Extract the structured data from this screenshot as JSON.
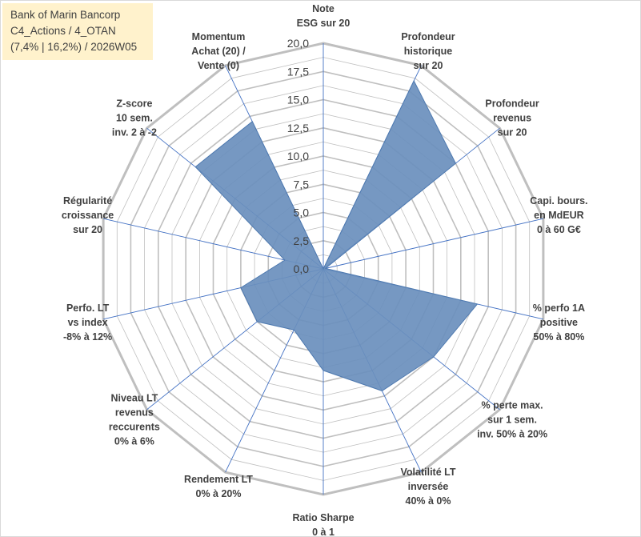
{
  "header": {
    "lines": [
      "Bank of Marin Bancorp",
      "C4_Actions / 4_OTAN",
      "(7,4% | 16,2%) / 2026W05"
    ]
  },
  "colors": {
    "fill": "#6a8fbd",
    "stroke": "#4f7ab0",
    "grid": "#bfbfbf",
    "spoke": "#4472c4",
    "title_bg": "#fff2cc"
  },
  "chart_data": {
    "type": "radar",
    "title": "Bank of Marin Bancorp",
    "rlim": [
      0,
      20
    ],
    "rticks": [
      0,
      2.5,
      5,
      7.5,
      10,
      12.5,
      15,
      17.5,
      20
    ],
    "rtick_labels": [
      "0,0",
      "2,5",
      "5,0",
      "7,5",
      "10,0",
      "12,5",
      "15,0",
      "17,5",
      "20,0"
    ],
    "axes": [
      {
        "label": [
          "Note",
          "ESG sur 20"
        ]
      },
      {
        "label": [
          "Profondeur",
          "historique",
          "sur 20"
        ]
      },
      {
        "label": [
          "Profondeur",
          "revenus",
          "sur 20"
        ]
      },
      {
        "label": [
          "Capi. bours.",
          "en MdEUR",
          "0 à 60 G€"
        ]
      },
      {
        "label": [
          "% perfo 1A",
          "positive",
          "50% à 80%"
        ]
      },
      {
        "label": [
          "% perte max.",
          "sur 1 sem.",
          "inv. 50% à 20%"
        ]
      },
      {
        "label": [
          "Volatilité LT",
          "inversée",
          "40% à 0%"
        ]
      },
      {
        "label": [
          "Ratio Sharpe",
          "0 à 1"
        ]
      },
      {
        "label": [
          "Rendement LT",
          "0% à 20%"
        ]
      },
      {
        "label": [
          "Niveau LT",
          "revenus",
          "reccurents",
          "0% à 6%"
        ]
      },
      {
        "label": [
          "Perfo. LT",
          "vs index",
          "-8% à 12%"
        ]
      },
      {
        "label": [
          "Régularité",
          "croissance",
          "sur 20"
        ]
      },
      {
        "label": [
          "Z-score",
          "10 sem.",
          "inv. 2 à -2"
        ]
      },
      {
        "label": [
          "Momentum",
          "Achat (20) /",
          "Vente (0)"
        ]
      }
    ],
    "series": [
      {
        "name": "Bank of Marin Bancorp",
        "values": [
          0,
          18.5,
          15.0,
          0.2,
          14.0,
          12.5,
          12.0,
          9.0,
          6.0,
          7.5,
          7.5,
          3.5,
          14.5,
          14.5
        ]
      }
    ]
  }
}
